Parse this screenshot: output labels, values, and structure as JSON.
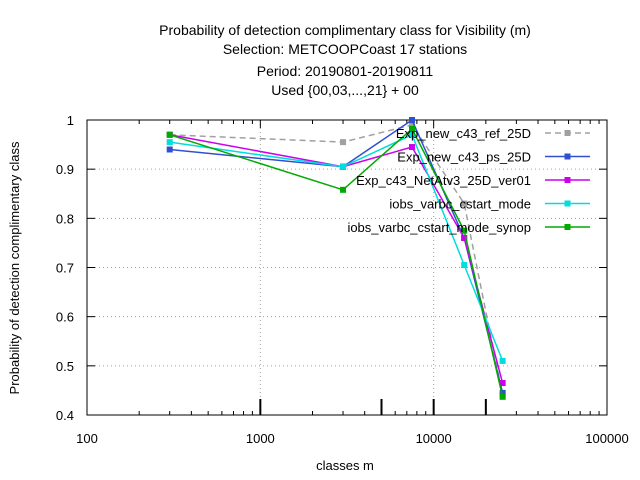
{
  "chart_data": {
    "type": "line",
    "title_lines": [
      "Probability of detection complimentary class  for Visibility (m)",
      "Selection: METCOOPCoast     17 stations",
      "Period: 20190801-20190811",
      "Used {00,03,...,21} + 00"
    ],
    "xlabel": "classes m",
    "ylabel": "Probability of detection complimentary class",
    "x_scale": "log",
    "xlim": [
      100,
      100000
    ],
    "ylim": [
      0.4,
      1.0
    ],
    "x_ticks": [
      100,
      1000,
      10000,
      100000
    ],
    "x_tick_labels": [
      "100",
      "1000",
      "10000",
      "100000"
    ],
    "y_ticks": [
      0.4,
      0.5,
      0.6,
      0.7,
      0.8,
      0.9,
      1.0
    ],
    "y_tick_labels": [
      "0.4",
      "0.5",
      "0.6",
      "0.7",
      "0.8",
      "0.9",
      "1"
    ],
    "grid": "dotted",
    "legend_position": "top-right",
    "sample_marks_x": [
      1000,
      5000,
      10000,
      20000
    ],
    "series": [
      {
        "name": "Exp_new_c43_ref_25D",
        "color": "#a0a0a0",
        "dash": "dashed",
        "x": [
          300,
          3000,
          7500,
          15000,
          25000
        ],
        "y": [
          0.97,
          0.955,
          0.99,
          0.83,
          0.44
        ]
      },
      {
        "name": "Exp_new_c43_ps_25D",
        "color": "#3050d0",
        "dash": "solid",
        "x": [
          300,
          3000,
          7500,
          15000,
          25000
        ],
        "y": [
          0.94,
          0.905,
          1.0,
          0.76,
          0.445
        ]
      },
      {
        "name": "Exp_c43_NetAtv3_25D_ver01",
        "color": "#cc00ee",
        "dash": "solid",
        "x": [
          300,
          3000,
          7500,
          15000,
          25000
        ],
        "y": [
          0.97,
          0.905,
          0.945,
          0.76,
          0.465
        ]
      },
      {
        "name": "iobs_varbc_cstart_mode",
        "color": "#00dddd",
        "dash": "solid",
        "x": [
          300,
          3000,
          7500,
          15000,
          25000
        ],
        "y": [
          0.955,
          0.905,
          0.97,
          0.705,
          0.51
        ]
      },
      {
        "name": "iobs_varbc_cstart_mode_synop",
        "color": "#00aa00",
        "dash": "solid",
        "x": [
          300,
          3000,
          7500,
          15000,
          25000
        ],
        "y": [
          0.97,
          0.858,
          0.982,
          0.775,
          0.437
        ]
      }
    ]
  }
}
